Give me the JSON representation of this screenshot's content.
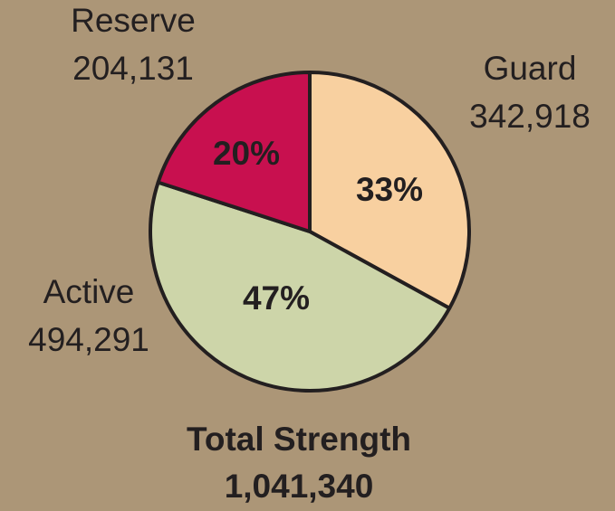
{
  "chart_data": {
    "type": "pie",
    "categories": [
      "Guard",
      "Active",
      "Reserve"
    ],
    "values": [
      33,
      47,
      20
    ],
    "value_labels": [
      "33%",
      "47%",
      "20%"
    ],
    "counts": [
      {
        "value": 342918,
        "label": "342,918"
      },
      {
        "value": 494291,
        "label": "494,291"
      },
      {
        "value": 204131,
        "label": "204,131"
      }
    ],
    "colors": [
      "#f8d0a0",
      "#cdd5a9",
      "#c8104f"
    ],
    "title": "Total Strength",
    "total": {
      "value": 1041340,
      "label": "1,041,340"
    }
  }
}
